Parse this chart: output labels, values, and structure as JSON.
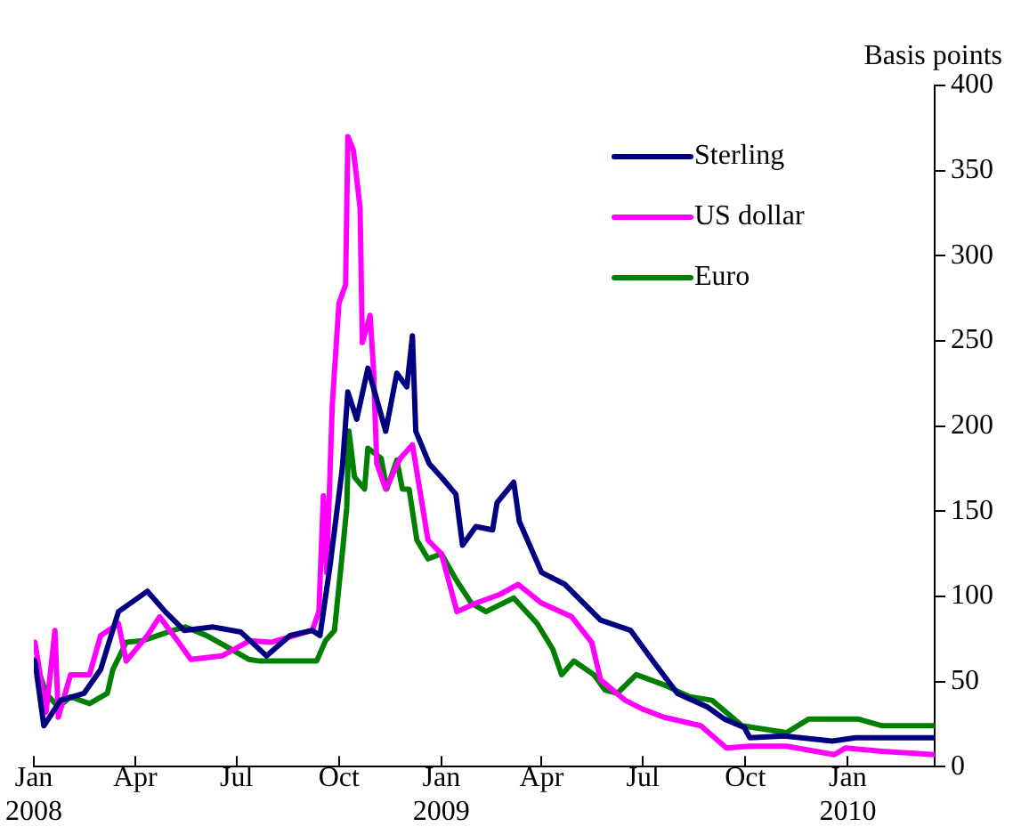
{
  "chart_data": {
    "type": "line",
    "ylabel": "Basis points",
    "xlim": [
      "2008-01-01",
      "2010-03-20"
    ],
    "xticks": [
      {
        "value": "2008-01",
        "label": "Jan 2008"
      },
      {
        "value": "2008-04",
        "label": "Apr"
      },
      {
        "value": "2008-07",
        "label": "Jul"
      },
      {
        "value": "2008-10",
        "label": "Oct"
      },
      {
        "value": "2009-01",
        "label": "Jan 2009"
      },
      {
        "value": "2009-04",
        "label": "Apr"
      },
      {
        "value": "2009-07",
        "label": "Jul"
      },
      {
        "value": "2009-10",
        "label": "Oct"
      },
      {
        "value": "2010-01",
        "label": "Jan 2010"
      }
    ],
    "ylim": [
      0,
      400
    ],
    "yticks": [
      0,
      50,
      100,
      150,
      200,
      250,
      300,
      350,
      400
    ],
    "grid": false,
    "legend": "top right",
    "marker": "none",
    "line_style": "solid",
    "series": [
      {
        "name": "Sterling",
        "color": "#000080",
        "x": [
          "2008-01-02",
          "2008-01-10",
          "2008-01-25",
          "2008-02-15",
          "2008-03-01",
          "2008-03-17",
          "2008-04-12",
          "2008-04-28",
          "2008-05-15",
          "2008-06-10",
          "2008-07-05",
          "2008-07-28",
          "2008-08-18",
          "2008-09-07",
          "2008-09-14",
          "2008-09-23",
          "2008-10-04",
          "2008-10-09",
          "2008-10-17",
          "2008-10-27",
          "2008-11-12",
          "2008-11-22",
          "2008-12-01",
          "2008-12-06",
          "2008-12-09",
          "2008-12-21",
          "2009-01-01",
          "2009-01-14",
          "2009-01-20",
          "2009-02-01",
          "2009-02-16",
          "2009-02-20",
          "2009-03-07",
          "2009-03-12",
          "2009-04-01",
          "2009-04-22",
          "2009-05-24",
          "2009-06-20",
          "2009-07-10",
          "2009-08-01",
          "2009-08-28",
          "2009-09-12",
          "2009-09-30",
          "2009-10-05",
          "2009-11-05",
          "2009-12-18",
          "2010-01-08",
          "2010-03-20"
        ],
        "values": [
          62,
          24,
          39,
          43,
          57,
          91,
          103,
          91,
          80,
          82,
          79,
          65,
          77,
          80,
          77,
          118,
          175,
          220,
          204,
          234,
          197,
          231,
          223,
          253,
          197,
          178,
          170,
          160,
          130,
          141,
          139,
          155,
          167,
          144,
          114,
          107,
          86,
          80,
          62,
          43,
          35,
          28,
          23,
          17,
          18,
          15,
          17,
          17
        ]
      },
      {
        "name": "US dollar",
        "color": "#ff00ff",
        "x": [
          "2008-01-02",
          "2008-01-12",
          "2008-01-20",
          "2008-01-23",
          "2008-02-03",
          "2008-02-20",
          "2008-03-01",
          "2008-03-17",
          "2008-03-24",
          "2008-04-12",
          "2008-04-23",
          "2008-05-10",
          "2008-05-21",
          "2008-06-18",
          "2008-07-13",
          "2008-08-01",
          "2008-09-07",
          "2008-09-13",
          "2008-09-17",
          "2008-09-20",
          "2008-09-25",
          "2008-10-01",
          "2008-10-07",
          "2008-10-09",
          "2008-10-14",
          "2008-10-20",
          "2008-10-22",
          "2008-10-29",
          "2008-11-01",
          "2008-11-04",
          "2008-11-12",
          "2008-11-25",
          "2008-12-06",
          "2008-12-20",
          "2009-01-01",
          "2009-01-15",
          "2009-02-01",
          "2009-02-22",
          "2009-03-11",
          "2009-04-01",
          "2009-04-28",
          "2009-05-16",
          "2009-05-24",
          "2009-06-15",
          "2009-06-30",
          "2009-07-20",
          "2009-08-22",
          "2009-09-14",
          "2009-10-05",
          "2009-11-07",
          "2009-12-20",
          "2009-12-30",
          "2010-02-01",
          "2010-03-20"
        ],
        "values": [
          73,
          32,
          80,
          29,
          54,
          54,
          77,
          84,
          62,
          77,
          88,
          73,
          63,
          65,
          74,
          73,
          80,
          91,
          159,
          114,
          212,
          272,
          283,
          370,
          362,
          328,
          249,
          265,
          234,
          178,
          163,
          181,
          189,
          133,
          125,
          91,
          96,
          101,
          107,
          96,
          88,
          73,
          51,
          39,
          34,
          29,
          24,
          11,
          12,
          12,
          7,
          11,
          9,
          7
        ]
      },
      {
        "name": "Euro",
        "color": "#008000",
        "x": [
          "2008-01-02",
          "2008-01-12",
          "2008-01-23",
          "2008-02-03",
          "2008-02-20",
          "2008-03-07",
          "2008-03-12",
          "2008-03-24",
          "2008-04-08",
          "2008-05-05",
          "2008-05-16",
          "2008-06-04",
          "2008-06-26",
          "2008-07-12",
          "2008-07-22",
          "2008-09-11",
          "2008-09-19",
          "2008-09-27",
          "2008-10-04",
          "2008-10-08",
          "2008-10-10",
          "2008-10-15",
          "2008-10-24",
          "2008-10-27",
          "2008-11-08",
          "2008-11-13",
          "2008-11-22",
          "2008-11-27",
          "2008-12-03",
          "2008-12-10",
          "2008-12-20",
          "2009-01-01",
          "2009-01-14",
          "2009-01-28",
          "2009-02-10",
          "2009-03-07",
          "2009-03-28",
          "2009-04-11",
          "2009-04-19",
          "2009-04-30",
          "2009-05-18",
          "2009-05-28",
          "2009-06-08",
          "2009-06-25",
          "2009-07-20",
          "2009-08-12",
          "2009-09-01",
          "2009-09-28",
          "2009-11-07",
          "2009-11-27",
          "2010-01-10",
          "2010-02-01",
          "2010-03-20"
        ],
        "values": [
          63,
          43,
          35,
          41,
          37,
          43,
          57,
          73,
          74,
          80,
          82,
          77,
          69,
          63,
          62,
          62,
          74,
          80,
          125,
          152,
          197,
          170,
          163,
          187,
          181,
          163,
          180,
          163,
          163,
          133,
          122,
          125,
          110,
          96,
          91,
          99,
          84,
          69,
          54,
          62,
          54,
          45,
          43,
          54,
          48,
          41,
          39,
          24,
          20,
          28,
          28,
          24,
          24
        ]
      }
    ]
  }
}
